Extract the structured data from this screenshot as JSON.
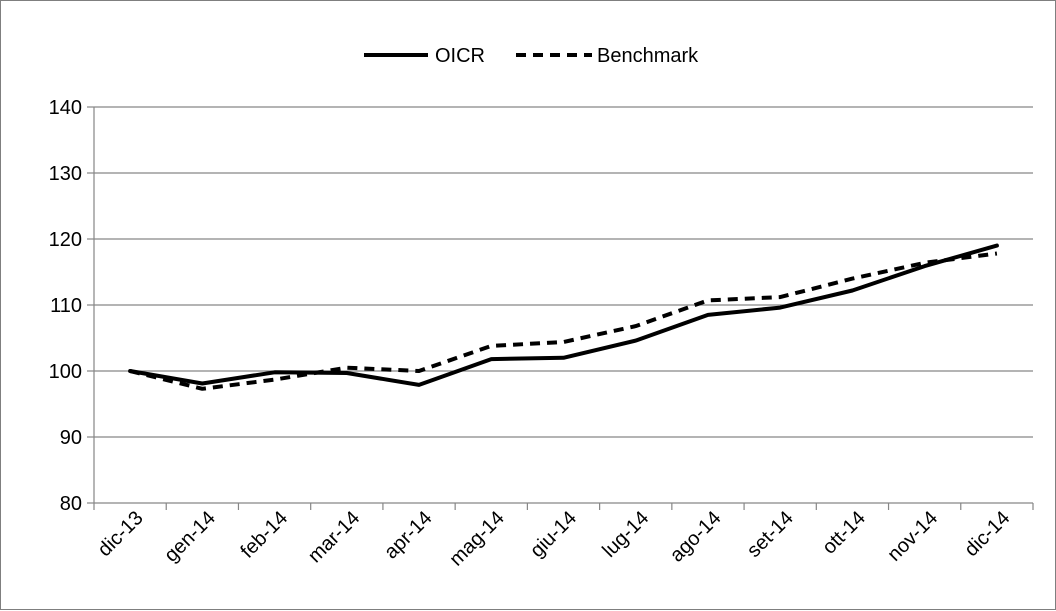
{
  "chart_data": {
    "type": "line",
    "title": "",
    "xlabel": "",
    "ylabel": "",
    "ylim": [
      80,
      140
    ],
    "yticks": [
      80,
      90,
      100,
      110,
      120,
      130,
      140
    ],
    "grid": true,
    "legend_position": "top-center",
    "categories": [
      "dic-13",
      "gen-14",
      "feb-14",
      "mar-14",
      "apr-14",
      "mag-14",
      "giu-14",
      "lug-14",
      "ago-14",
      "set-14",
      "ott-14",
      "nov-14",
      "dic-14"
    ],
    "series": [
      {
        "name": "OICR",
        "style": "solid",
        "color": "#000000",
        "values": [
          100,
          98.1,
          99.8,
          99.7,
          97.9,
          101.8,
          102.0,
          104.6,
          108.5,
          109.6,
          112.2,
          115.9,
          119.0
        ]
      },
      {
        "name": "Benchmark",
        "style": "dashed",
        "color": "#000000",
        "values": [
          100,
          97.3,
          98.7,
          100.5,
          100.0,
          103.8,
          104.4,
          106.8,
          110.7,
          111.2,
          114.0,
          116.4,
          117.8
        ]
      }
    ]
  }
}
